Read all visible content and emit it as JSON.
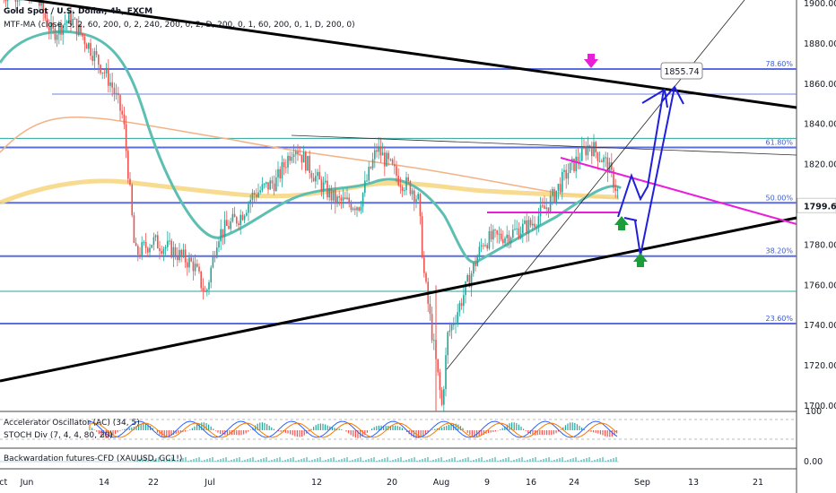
{
  "header": {
    "title": "Gold Spot / U.S. Dollar, 4h, FXCM",
    "indicator": "MTF-MA (close, 5, 2, 60, 200, 0, 2, 240, 200, 0, 2, D, 200, 0, 1, 60, 200, 0, 1, D, 200, 0)"
  },
  "panels": {
    "osc_label_1": "Accelerator Oscillator (AC) (34, 5)",
    "osc_label_2": "STOCH Div (7, 4, 4, 80, 20)",
    "osc_tick": "100",
    "cfd_label": "Backwardation futures-CFD (XAUUSD, GC1!)",
    "cfd_tick": "0.00"
  },
  "colors": {
    "price_up": "#26a69a",
    "price_down": "#ef5350",
    "fib_line": "#5b6ee1",
    "trend_black": "#000000",
    "projection": "#1f1fdd",
    "magenta": "#e91ed9",
    "green_arrow": "#1b9e3a",
    "ma_teal": "#5dbfb2",
    "ma_yellow": "#f6d784",
    "ma_orange": "#f4b183"
  },
  "chart_data": {
    "type": "candlestick",
    "symbol": "XAUUSD",
    "timeframe": "4h",
    "x_ticks": [
      "Jun",
      "14",
      "22",
      "Jul",
      "12",
      "20",
      "Aug",
      "9",
      "16",
      "24",
      "Sep",
      "13",
      "21",
      "Oct"
    ],
    "y_ticks": [
      1900,
      1880,
      1860,
      1840,
      1820,
      1800,
      1780,
      1760,
      1740,
      1720,
      1700
    ],
    "ylim": [
      1700,
      1900
    ],
    "current_price": "1799.66",
    "target_label": "1855.74",
    "fib_levels": [
      {
        "label": "78.60%",
        "price": 1867.5
      },
      {
        "label": "61.80%",
        "price": 1828.5
      },
      {
        "label": "50.00%",
        "price": 1801.0
      },
      {
        "label": "38.20%",
        "price": 1774.5
      },
      {
        "label": "23.60%",
        "price": 1741.0
      }
    ],
    "price_path": [
      {
        "x": "Jun 1",
        "close": 1905
      },
      {
        "x": "Jun 4",
        "close": 1885
      },
      {
        "x": "Jun 7",
        "close": 1893
      },
      {
        "x": "Jun 10",
        "close": 1880
      },
      {
        "x": "Jun 14",
        "close": 1860
      },
      {
        "x": "Jun 16",
        "close": 1843
      },
      {
        "x": "Jun 17",
        "close": 1812
      },
      {
        "x": "Jun 18",
        "close": 1775
      },
      {
        "x": "Jun 21",
        "close": 1782
      },
      {
        "x": "Jun 24",
        "close": 1778
      },
      {
        "x": "Jun 28",
        "close": 1770
      },
      {
        "x": "Jun 30",
        "close": 1755
      },
      {
        "x": "Jul 2",
        "close": 1785
      },
      {
        "x": "Jul 6",
        "close": 1795
      },
      {
        "x": "Jul 8",
        "close": 1805
      },
      {
        "x": "Jul 12",
        "close": 1812
      },
      {
        "x": "Jul 15",
        "close": 1830
      },
      {
        "x": "Jul 19",
        "close": 1812
      },
      {
        "x": "Jul 22",
        "close": 1802
      },
      {
        "x": "Jul 26",
        "close": 1800
      },
      {
        "x": "Jul 29",
        "close": 1828
      },
      {
        "x": "Aug 2",
        "close": 1812
      },
      {
        "x": "Aug 4",
        "close": 1808
      },
      {
        "x": "Aug 5",
        "close": 1802
      },
      {
        "x": "Aug 6",
        "close": 1765
      },
      {
        "x": "Aug 9",
        "close": 1700
      },
      {
        "x": "Aug 10",
        "close": 1735
      },
      {
        "x": "Aug 12",
        "close": 1750
      },
      {
        "x": "Aug 16",
        "close": 1782
      },
      {
        "x": "Aug 20",
        "close": 1785
      },
      {
        "x": "Aug 24",
        "close": 1790
      },
      {
        "x": "Aug 27",
        "close": 1800
      },
      {
        "x": "Aug 30",
        "close": 1815
      },
      {
        "x": "Sep 3",
        "close": 1830
      },
      {
        "x": "Sep 6",
        "close": 1820
      },
      {
        "x": "Sep 9",
        "close": 1797
      }
    ]
  }
}
